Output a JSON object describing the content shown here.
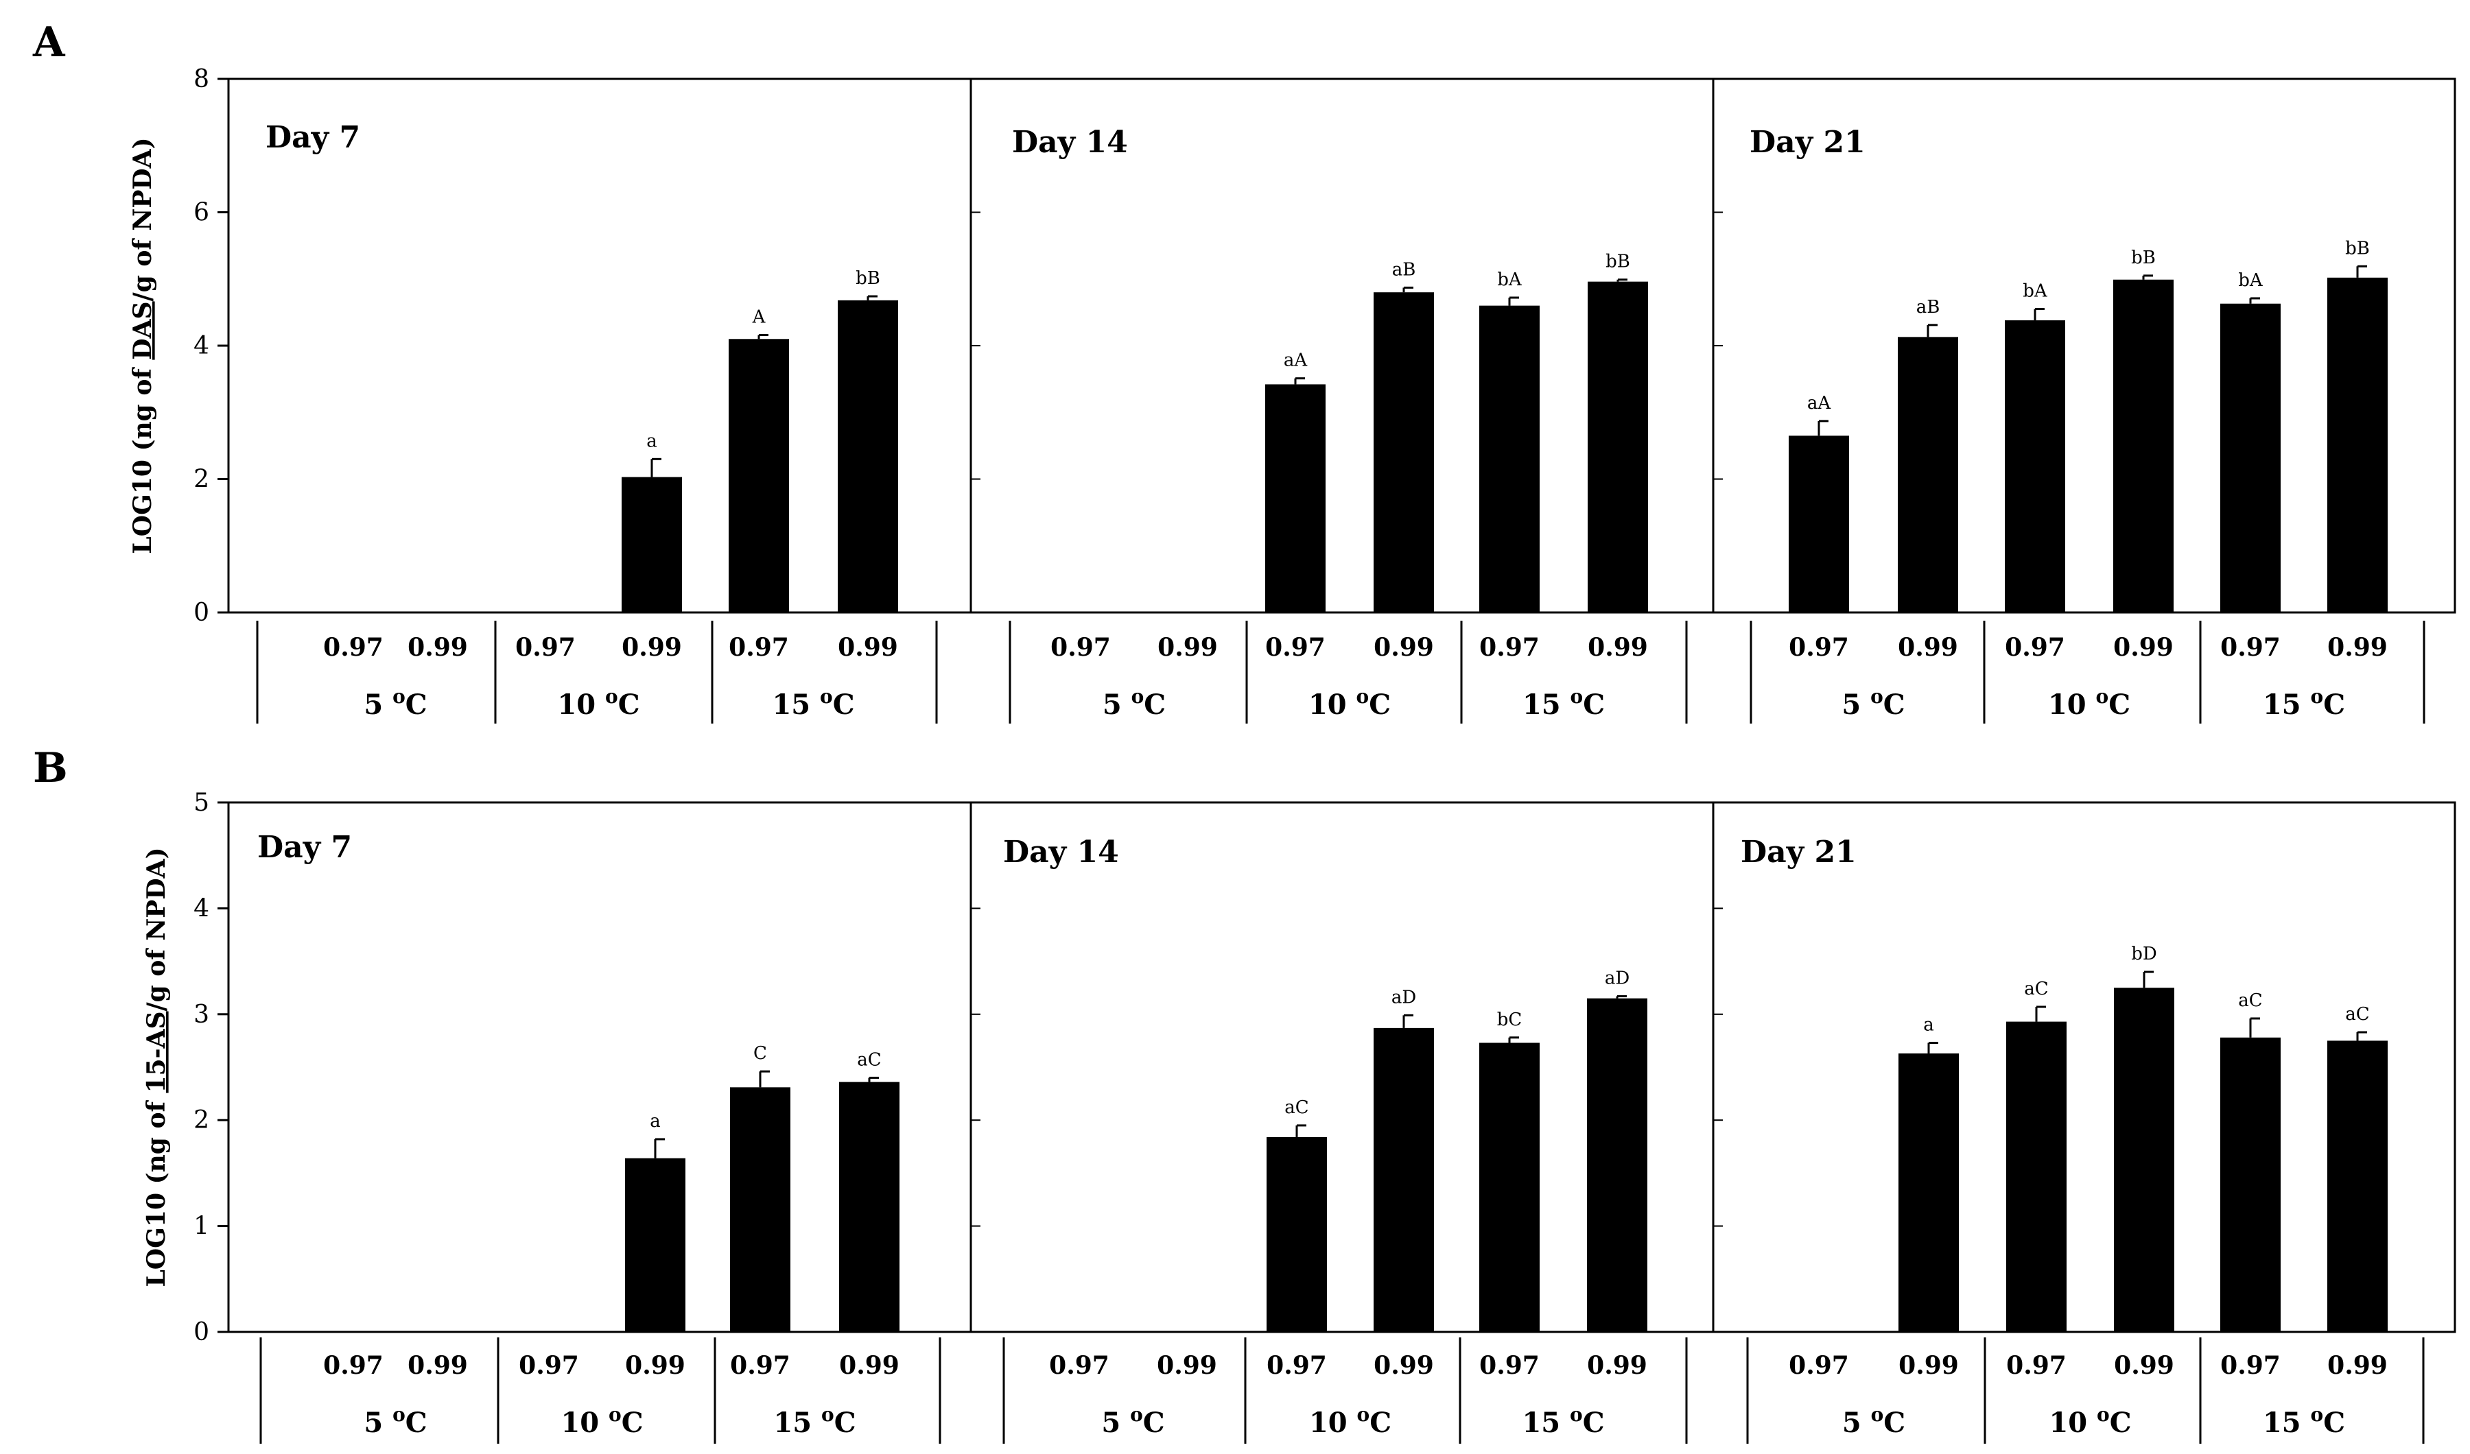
{
  "figure": {
    "panel_labels": [
      "A",
      "B"
    ],
    "temp_unit_prefix": " ",
    "temp_unit_suffix": "C",
    "degree_symbol": "o"
  },
  "chart_data": [
    {
      "type": "bar",
      "panel": "A",
      "ylabel": "LOG10 (ng of DAS/g of NPDA)",
      "ylabel_parts": [
        "LOG10 (ng of ",
        "DAS",
        "/g of NPDA)"
      ],
      "ylim": [
        0,
        8
      ],
      "yticks": [
        0,
        2,
        4,
        6,
        8
      ],
      "bar_color": "#000000",
      "subplots": [
        {
          "title": "Day 7",
          "groups": [
            {
              "temperature": "5",
              "bars": [
                {
                  "aw": "0.97",
                  "value": 0,
                  "error": 0,
                  "label": ""
                },
                {
                  "aw": "0.99",
                  "value": 0,
                  "error": 0,
                  "label": ""
                }
              ]
            },
            {
              "temperature": "10",
              "bars": [
                {
                  "aw": "0.97",
                  "value": 0,
                  "error": 0,
                  "label": ""
                },
                {
                  "aw": "0.99",
                  "value": 2.03,
                  "error": 0.27,
                  "label": "a"
                }
              ]
            },
            {
              "temperature": "15",
              "bars": [
                {
                  "aw": "0.97",
                  "value": 4.1,
                  "error": 0.06,
                  "label": "A"
                },
                {
                  "aw": "0.99",
                  "value": 4.68,
                  "error": 0.06,
                  "label": "bB"
                }
              ]
            }
          ]
        },
        {
          "title": "Day 14",
          "groups": [
            {
              "temperature": "5",
              "bars": [
                {
                  "aw": "0.97",
                  "value": 0,
                  "error": 0,
                  "label": ""
                },
                {
                  "aw": "0.99",
                  "value": 0,
                  "error": 0,
                  "label": ""
                }
              ]
            },
            {
              "temperature": "10",
              "bars": [
                {
                  "aw": "0.97",
                  "value": 3.42,
                  "error": 0.09,
                  "label": "aA"
                },
                {
                  "aw": "0.99",
                  "value": 4.8,
                  "error": 0.07,
                  "label": "aB"
                }
              ]
            },
            {
              "temperature": "15",
              "bars": [
                {
                  "aw": "0.97",
                  "value": 4.6,
                  "error": 0.12,
                  "label": "bA"
                },
                {
                  "aw": "0.99",
                  "value": 4.96,
                  "error": 0.03,
                  "label": "bB"
                }
              ]
            }
          ]
        },
        {
          "title": "Day 21",
          "groups": [
            {
              "temperature": "5",
              "bars": [
                {
                  "aw": "0.97",
                  "value": 2.65,
                  "error": 0.22,
                  "label": "aA"
                },
                {
                  "aw": "0.99",
                  "value": 4.13,
                  "error": 0.18,
                  "label": "aB"
                }
              ]
            },
            {
              "temperature": "10",
              "bars": [
                {
                  "aw": "0.97",
                  "value": 4.38,
                  "error": 0.17,
                  "label": "bA"
                },
                {
                  "aw": "0.99",
                  "value": 4.99,
                  "error": 0.06,
                  "label": "bB"
                }
              ]
            },
            {
              "temperature": "15",
              "bars": [
                {
                  "aw": "0.97",
                  "value": 4.63,
                  "error": 0.08,
                  "label": "bA"
                },
                {
                  "aw": "0.99",
                  "value": 5.02,
                  "error": 0.17,
                  "label": "bB"
                }
              ]
            }
          ]
        }
      ]
    },
    {
      "type": "bar",
      "panel": "B",
      "ylabel": "LOG10 (ng of 15-AS/g of NPDA)",
      "ylabel_parts": [
        "LOG10 (ng of ",
        "15-AS",
        "/g of NPDA)"
      ],
      "ylim": [
        0,
        5
      ],
      "yticks": [
        0,
        1,
        2,
        3,
        4,
        5
      ],
      "bar_color": "#000000",
      "subplots": [
        {
          "title": "Day 7",
          "groups": [
            {
              "temperature": "5",
              "bars": [
                {
                  "aw": "0.97",
                  "value": 0,
                  "error": 0,
                  "label": ""
                },
                {
                  "aw": "0.99",
                  "value": 0,
                  "error": 0,
                  "label": ""
                }
              ]
            },
            {
              "temperature": "10",
              "bars": [
                {
                  "aw": "0.97",
                  "value": 0,
                  "error": 0,
                  "label": ""
                },
                {
                  "aw": "0.99",
                  "value": 1.64,
                  "error": 0.18,
                  "label": "a"
                }
              ]
            },
            {
              "temperature": "15",
              "bars": [
                {
                  "aw": "0.97",
                  "value": 2.31,
                  "error": 0.15,
                  "label": "C"
                },
                {
                  "aw": "0.99",
                  "value": 2.36,
                  "error": 0.04,
                  "label": "aC"
                }
              ]
            }
          ]
        },
        {
          "title": "Day 14",
          "groups": [
            {
              "temperature": "5",
              "bars": [
                {
                  "aw": "0.97",
                  "value": 0,
                  "error": 0,
                  "label": ""
                },
                {
                  "aw": "0.99",
                  "value": 0,
                  "error": 0,
                  "label": ""
                }
              ]
            },
            {
              "temperature": "10",
              "bars": [
                {
                  "aw": "0.97",
                  "value": 1.84,
                  "error": 0.11,
                  "label": "aC"
                },
                {
                  "aw": "0.99",
                  "value": 2.87,
                  "error": 0.12,
                  "label": "aD"
                }
              ]
            },
            {
              "temperature": "15",
              "bars": [
                {
                  "aw": "0.97",
                  "value": 2.73,
                  "error": 0.05,
                  "label": "bC"
                },
                {
                  "aw": "0.99",
                  "value": 3.15,
                  "error": 0.02,
                  "label": "aD"
                }
              ]
            }
          ]
        },
        {
          "title": "Day 21",
          "groups": [
            {
              "temperature": "5",
              "bars": [
                {
                  "aw": "0.97",
                  "value": 0,
                  "error": 0,
                  "label": ""
                },
                {
                  "aw": "0.99",
                  "value": 2.63,
                  "error": 0.1,
                  "label": "a"
                }
              ]
            },
            {
              "temperature": "10",
              "bars": [
                {
                  "aw": "0.97",
                  "value": 2.93,
                  "error": 0.14,
                  "label": "aC"
                },
                {
                  "aw": "0.99",
                  "value": 3.25,
                  "error": 0.15,
                  "label": "bD"
                }
              ]
            },
            {
              "temperature": "15",
              "bars": [
                {
                  "aw": "0.97",
                  "value": 2.78,
                  "error": 0.18,
                  "label": "aC"
                },
                {
                  "aw": "0.99",
                  "value": 2.75,
                  "error": 0.08,
                  "label": "aC"
                }
              ]
            }
          ]
        }
      ]
    }
  ]
}
